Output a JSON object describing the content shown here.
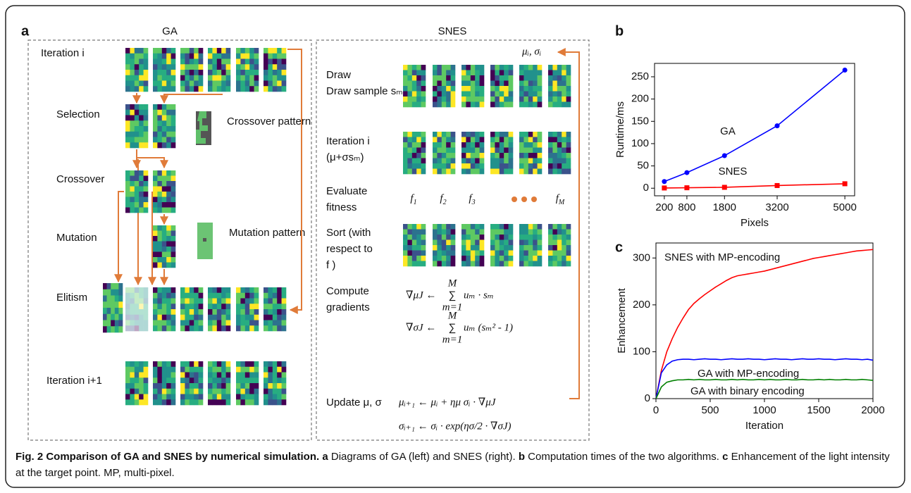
{
  "panel_labels": [
    "a",
    "b",
    "c"
  ],
  "diagram": {
    "ga": {
      "title": "GA",
      "steps": [
        "Iteration i",
        "Selection",
        "Crossover",
        "Mutation",
        "Elitism",
        "Iteration i+1"
      ],
      "crossover_pattern": "Crossover pattern",
      "mutation_pattern": "Mutation pattern"
    },
    "snes": {
      "title": "SNES",
      "params": "μᵢ, σᵢ",
      "steps": [
        "Draw sample sₘ",
        "Iteration i",
        "(μ+σsₘ)",
        "Evaluate",
        "fitness",
        "Sort (with",
        "respect to",
        "f )",
        "Compute",
        "gradients",
        "Update μ, σ"
      ],
      "fitness_labels": [
        {
          "base": "f",
          "sub": "1"
        },
        {
          "base": "f",
          "sub": "2"
        },
        {
          "base": "f",
          "sub": "3"
        },
        {
          "base": "f",
          "sub": "M"
        }
      ],
      "gradients": [
        {
          "lhs": "∇μJ ←",
          "sum": "∑",
          "top": "M",
          "bottom": "m=1",
          "rhs": "uₘ  · sₘ"
        },
        {
          "lhs": "∇σJ ←",
          "sum": "∑",
          "top": "M",
          "bottom": "m=1",
          "rhs": "uₘ  (sₘ² - 1)"
        }
      ],
      "updates": [
        "μᵢ₊₁ ← μᵢ + ημ σᵢ · ∇μJ",
        "σᵢ₊₁ ← σᵢ · exp(ησ/2 · ∇σJ)"
      ]
    }
  },
  "chart_data": [
    {
      "type": "line",
      "xlabel": "Pixels",
      "ylabel": "Runtime/ms",
      "x": [
        200,
        800,
        1800,
        3200,
        5000
      ],
      "series": [
        {
          "name": "GA",
          "color": "#0000ff",
          "marker": "circle",
          "values": [
            15,
            35,
            73,
            140,
            265
          ]
        },
        {
          "name": "SNES",
          "color": "#ff0000",
          "marker": "square",
          "values": [
            0.5,
            1,
            2,
            6,
            10
          ]
        }
      ],
      "xlim": [
        -60,
        5260
      ],
      "ylim": [
        -17,
        280
      ],
      "xticks": [
        200,
        800,
        1800,
        3200,
        5000
      ],
      "yticks": [
        0,
        50,
        100,
        150,
        200,
        250
      ]
    },
    {
      "type": "line",
      "xlabel": "Iteration",
      "ylabel": "Enhancement",
      "x": [
        0,
        50,
        100,
        150,
        200,
        250,
        300,
        350,
        400,
        450,
        500,
        550,
        600,
        650,
        700,
        750,
        800,
        850,
        900,
        950,
        1000,
        1050,
        1100,
        1150,
        1200,
        1250,
        1300,
        1350,
        1400,
        1450,
        1500,
        1550,
        1600,
        1650,
        1700,
        1750,
        1800,
        1850,
        1900,
        1950,
        2000
      ],
      "series": [
        {
          "name": "SNES with MP-encoding",
          "color": "#ff0000",
          "values": [
            0,
            60,
            100,
            128,
            152,
            172,
            190,
            203,
            213,
            222,
            230,
            238,
            245,
            252,
            258,
            262,
            264,
            266,
            268,
            270,
            272,
            275,
            278,
            281,
            284,
            287,
            290,
            293,
            296,
            299,
            301,
            303,
            305,
            307,
            309,
            311,
            313,
            315,
            316,
            317,
            318
          ]
        },
        {
          "name": "GA with MP-encoding",
          "color": "#0000ff",
          "values": [
            0,
            55,
            72,
            80,
            83,
            84,
            84,
            83,
            84,
            85,
            84,
            84,
            83,
            84,
            85,
            84,
            84,
            85,
            84,
            84,
            83,
            84,
            85,
            84,
            84,
            83,
            84,
            85,
            84,
            84,
            85,
            84,
            84,
            83,
            84,
            85,
            84,
            84,
            83,
            84,
            82
          ]
        },
        {
          "name": "GA with binary encoding",
          "color": "#008000",
          "values": [
            0,
            25,
            35,
            38,
            40,
            40,
            41,
            40,
            41,
            40,
            40,
            41,
            40,
            40,
            41,
            40,
            41,
            40,
            40,
            41,
            40,
            41,
            40,
            40,
            41,
            40,
            40,
            41,
            40,
            40,
            41,
            40,
            41,
            40,
            40,
            41,
            40,
            40,
            41,
            40,
            39
          ]
        }
      ],
      "xlim": [
        0,
        2000
      ],
      "ylim": [
        0,
        332
      ],
      "xticks": [
        0,
        500,
        1000,
        1500,
        2000
      ],
      "yticks": [
        0,
        100,
        200,
        300
      ]
    }
  ],
  "caption": {
    "title": "Fig. 2 Comparison of GA and SNES by numerical simulation.",
    "parts": [
      {
        "label": "a",
        "text": "Diagrams of GA (left) and SNES (right)."
      },
      {
        "label": "b",
        "text": "Computation times of the two algorithms."
      },
      {
        "label": "c",
        "text": "Enhancement of the light intensity at the target point. MP, multi-pixel."
      }
    ]
  }
}
